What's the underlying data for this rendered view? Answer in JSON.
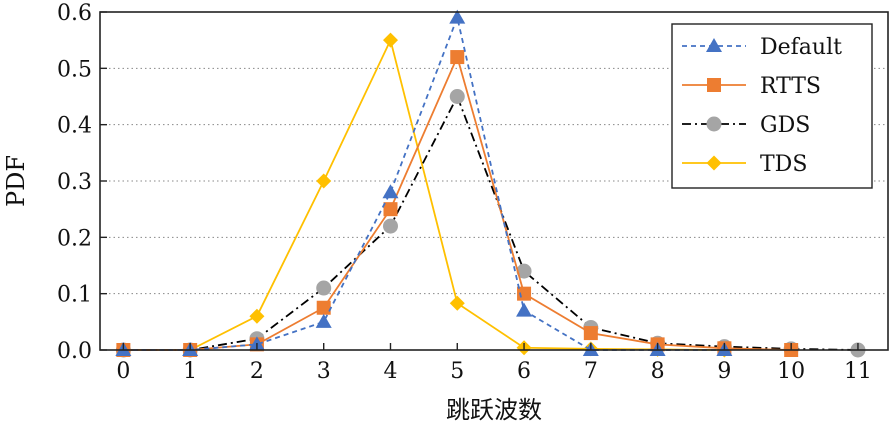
{
  "chart_data": {
    "type": "line",
    "title": "",
    "xlabel": "跳跃波数",
    "ylabel": "PDF",
    "x": [
      0,
      1,
      2,
      3,
      4,
      5,
      6,
      7,
      8,
      9,
      10,
      11
    ],
    "xlim": [
      -0.35,
      11.45
    ],
    "ylim": [
      0,
      0.6
    ],
    "yticks": [
      0.0,
      0.1,
      0.2,
      0.3,
      0.4,
      0.5,
      0.6
    ],
    "ytick_labels": [
      "0.0",
      "0.1",
      "0.2",
      "0.3",
      "0.4",
      "0.5",
      "0.6"
    ],
    "xtick_labels": [
      "0",
      "1",
      "2",
      "3",
      "4",
      "5",
      "6",
      "7",
      "8",
      "9",
      "10",
      "11"
    ],
    "grid": "horizontal dotted",
    "legend_position": "top-right",
    "series": [
      {
        "name": "Default",
        "color": "#4472c4",
        "line": "dashed",
        "marker": "triangle",
        "x": [
          0,
          1,
          2,
          3,
          4,
          5,
          6,
          7,
          8,
          9
        ],
        "values": [
          0.0,
          0.0,
          0.01,
          0.05,
          0.28,
          0.59,
          0.07,
          0.0,
          0.0,
          0.0
        ]
      },
      {
        "name": "RTTS",
        "color": "#ed7d31",
        "line": "solid",
        "marker": "square",
        "x": [
          0,
          1,
          2,
          3,
          4,
          5,
          6,
          7,
          8,
          9,
          10
        ],
        "values": [
          0.0,
          0.0,
          0.01,
          0.075,
          0.25,
          0.52,
          0.1,
          0.03,
          0.01,
          0.003,
          0.0
        ]
      },
      {
        "name": "GDS",
        "color": "#a5a5a5",
        "line_color": "#000000",
        "line": "dashdot",
        "marker": "circle",
        "x": [
          0,
          1,
          2,
          3,
          4,
          5,
          6,
          7,
          8,
          9,
          10,
          11
        ],
        "values": [
          0.0,
          0.0,
          0.02,
          0.11,
          0.22,
          0.45,
          0.14,
          0.04,
          0.012,
          0.006,
          0.002,
          0.0
        ]
      },
      {
        "name": "TDS",
        "color": "#ffc000",
        "line": "solid",
        "marker": "diamond",
        "x": [
          0,
          1,
          2,
          3,
          4,
          5,
          6,
          7,
          8,
          9
        ],
        "values": [
          0.0,
          0.0,
          0.06,
          0.3,
          0.55,
          0.083,
          0.004,
          0.002,
          0.001,
          0.0
        ]
      }
    ]
  }
}
